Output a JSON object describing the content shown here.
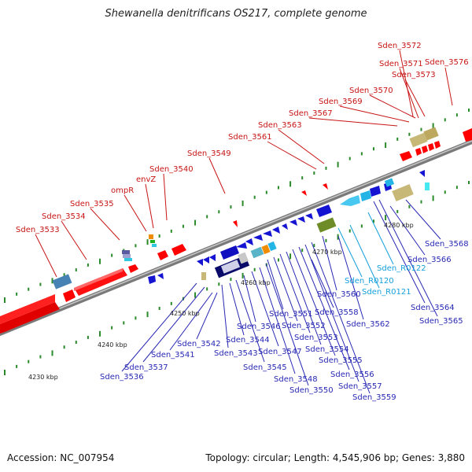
{
  "title": "Shewanella denitrificans OS217, complete genome",
  "footer": {
    "accession": "Accession: NC_007954",
    "summary": "Topology: circular; Length: 4,545,906 bp; Genes: 3,880"
  },
  "colors": {
    "plus_strand_gene": "#ff0000",
    "minus_strand_gene": "#1414d2",
    "rna_gene": "#24b4e6",
    "plus_label": "#c81414",
    "minus_label": "#2828b4",
    "rna_label": "#14a0dc",
    "tick": "#2a8a2a",
    "backbone": "#8c8c8c"
  },
  "kbp_labels": [
    "4230 kbp",
    "4240 kbp",
    "4250 kbp",
    "4260 kbp",
    "4270 kbp",
    "4280 kbp"
  ],
  "upper_labels": [
    "Sden_3533",
    "Sden_3534",
    "Sden_3535",
    "ompR",
    "envZ",
    "Sden_3540",
    "Sden_3549",
    "Sden_3561",
    "Sden_3563",
    "Sden_3567",
    "Sden_3569",
    "Sden_3570",
    "Sden_3573",
    "Sden_3571",
    "Sden_3572",
    "Sden_3576"
  ],
  "lower_labels": [
    "Sden_3536",
    "Sden_3537",
    "Sden_3541",
    "Sden_3542",
    "Sden_3543",
    "Sden_3544",
    "Sden_3545",
    "Sden_3546",
    "Sden_3547",
    "Sden_3548",
    "Sden_3550",
    "Sden_3551",
    "Sden_3552",
    "Sden_3553",
    "Sden_3554",
    "Sden_3555",
    "Sden_3556",
    "Sden_3557",
    "Sden_3559",
    "Sden_3558",
    "Sden_3560",
    "Sden_3562",
    "Sden_3564",
    "Sden_3565",
    "Sden_3566",
    "Sden_3568"
  ],
  "rna_labels": [
    "Sden_R0120",
    "Sden_R0121",
    "Sden_R0122"
  ]
}
